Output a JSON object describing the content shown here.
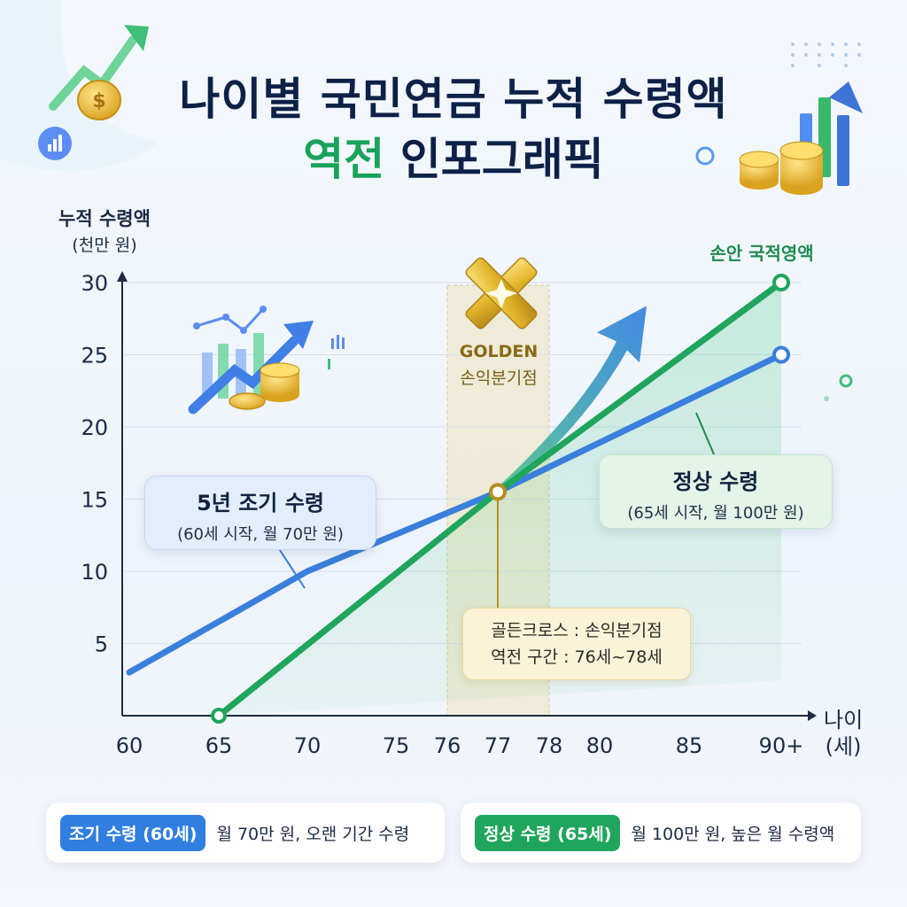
{
  "title": {
    "line1": "나이별 국민연금 누적 수령액",
    "line2_accent": "역전",
    "line2_rest": "인포그래픽"
  },
  "colors": {
    "early": "#3a7fdc",
    "normal": "#1fa55c",
    "gold": "#c9a227"
  },
  "icons": [
    "rising-arrow-icon",
    "coin-icon",
    "bar-chart-icon",
    "coin-stack-icon"
  ],
  "chart_data": {
    "type": "line",
    "ylabel": "누적 수령액",
    "ylabel_unit": "(천만 원)",
    "xlabel": "나이",
    "xlabel_unit": "(세)",
    "x_ticks": [
      "60",
      "65",
      "70",
      "75",
      "76",
      "77",
      "78",
      "80",
      "85",
      "90+"
    ],
    "y_ticks": [
      "5",
      "10",
      "15",
      "20",
      "25",
      "30"
    ],
    "ylim": [
      0,
      30
    ],
    "grid": true,
    "series": [
      {
        "name": "5년 조기 수령",
        "x": [
          60,
          70,
          77,
          90
        ],
        "y": [
          3,
          10,
          15.5,
          25
        ]
      },
      {
        "name": "정상 수령",
        "x": [
          65,
          77,
          90
        ],
        "y": [
          0,
          15.5,
          30
        ]
      }
    ],
    "crossover": {
      "x": 77,
      "y": 15.5
    },
    "zone": [
      76,
      78
    ]
  },
  "annotations": {
    "golden_word": "GOLDEN",
    "golden_sub": "손익분기점",
    "zone_label": "손안 국적영액",
    "early_title": "5년 조기 수령",
    "early_sub": "(60세 시작, 월 70만 원)",
    "normal_title": "정상 수령",
    "normal_sub": "(65세 시작, 월 100만 원)",
    "cross_line1": "골든크로스 : 손익분기점",
    "cross_line2": "역전 구간 : 76세~78세"
  },
  "legend": {
    "early_pill": "조기 수령 (60세)",
    "early_text": "월 70만 원, 오랜 기간 수령",
    "normal_pill": "정상 수령 (65세)",
    "normal_text": "월 100만 원, 높은 월 수령액"
  }
}
